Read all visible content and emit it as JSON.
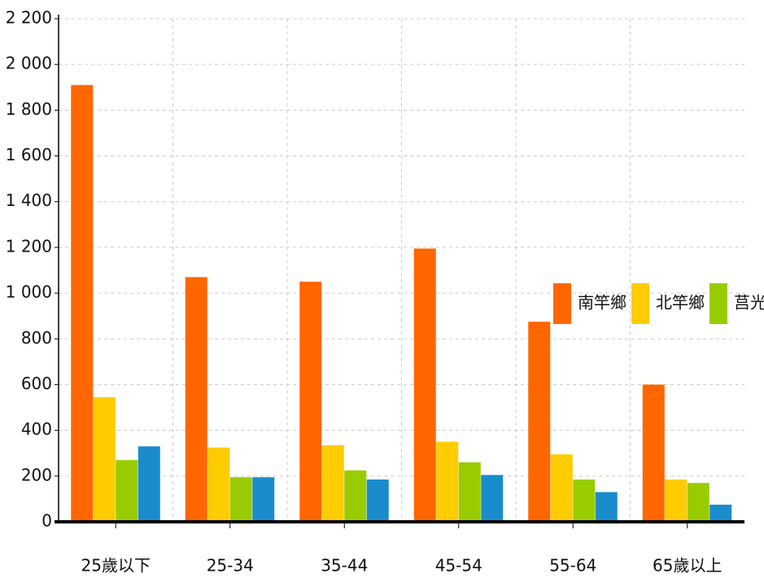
{
  "chart_data": {
    "type": "bar",
    "categories": [
      "25歲以下",
      "25-34",
      "35-44",
      "45-54",
      "55-64",
      "65歲以上"
    ],
    "series": [
      {
        "name": "南竿鄉",
        "color": "#ff6600",
        "values": [
          1910,
          1070,
          1050,
          1195,
          875,
          600
        ]
      },
      {
        "name": "北竿鄉",
        "color": "#ffcc00",
        "values": [
          545,
          325,
          335,
          350,
          295,
          185
        ]
      },
      {
        "name": "莒光鄉",
        "color": "#99cc00",
        "values": [
          270,
          195,
          225,
          260,
          185,
          170
        ]
      },
      {
        "color": "#1a8ccc",
        "values": [
          330,
          195,
          185,
          205,
          130,
          75
        ]
      }
    ],
    "ylim": [
      0,
      2200
    ],
    "yticks": [
      0,
      200,
      400,
      600,
      800,
      {
        "value": 1000,
        "label": "1 000"
      },
      {
        "value": 1200,
        "label": "1 200"
      },
      {
        "value": 1400,
        "label": "1 400"
      },
      {
        "value": 1600,
        "label": "1 600"
      },
      {
        "value": 1800,
        "label": "1 800"
      },
      {
        "value": 2000,
        "label": "2 000"
      },
      {
        "value": 2200,
        "label": "2 200"
      }
    ],
    "grid": true,
    "legend": "right"
  }
}
